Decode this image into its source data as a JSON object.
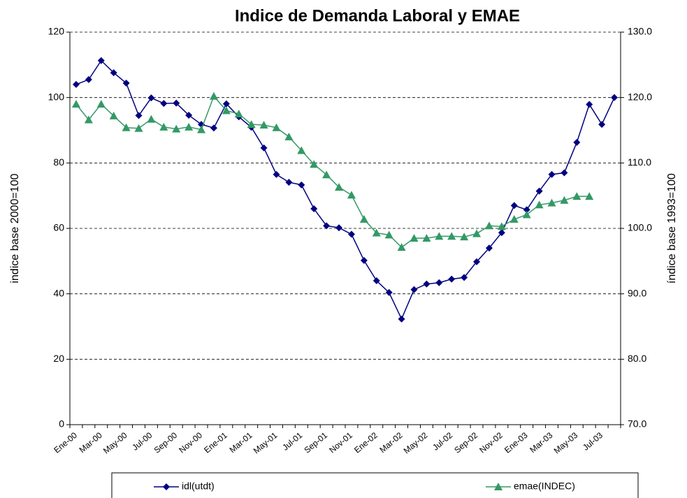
{
  "chart_data": {
    "type": "line",
    "title": "Indice de Demanda Laboral y EMAE",
    "ylabel": "indice base 2000=100",
    "y2label": "índice base 1993=100",
    "categories": [
      "Ene-00",
      null,
      "Mar-00",
      null,
      "May-00",
      null,
      "Jul-00",
      null,
      "Sep-00",
      null,
      "Nov-00",
      null,
      "Ene-01",
      null,
      "Mar-01",
      null,
      "May-01",
      null,
      "Jul-01",
      null,
      "Sep-01",
      null,
      "Nov-01",
      null,
      "Ene-02",
      null,
      "Mar-02",
      null,
      "May-02",
      null,
      "Jul-02",
      null,
      "Sep-02",
      null,
      "Nov-02",
      null,
      "Ene-03",
      null,
      "Mar-03",
      null,
      "May-03",
      null,
      "Jul-03",
      null
    ],
    "series": [
      {
        "name": "idl(utdt)",
        "color": "#000080",
        "marker": "diamond",
        "values": [
          104,
          105.5,
          111.3,
          107.6,
          104.4,
          94.5,
          99.9,
          98.2,
          98.3,
          94.6,
          91.8,
          90.7,
          98.1,
          94.1,
          90.9,
          84.6,
          76.5,
          74.1,
          73.3,
          66,
          60.8,
          60.2,
          58.2,
          50.2,
          44,
          40.4,
          32.3,
          41.3,
          43,
          43.4,
          44.5,
          45,
          49.8,
          54,
          58.7,
          67,
          65.7,
          71.4,
          76.5,
          77,
          86.3,
          97.9,
          91.8,
          100
        ]
      },
      {
        "name": "emae(INDEC)",
        "color": "#339966",
        "marker": "triangle",
        "axis": "y2",
        "values": [
          119.0,
          116.6,
          119.0,
          117.2,
          115.4,
          115.3,
          116.7,
          115.5,
          115.2,
          115.5,
          115.1,
          120.2,
          118.0,
          117.5,
          115.9,
          115.8,
          115.4,
          114.0,
          111.9,
          109.8,
          108.2,
          106.3,
          105.1,
          101.4,
          99.3,
          99.0,
          97.1,
          98.5,
          98.5,
          98.8,
          98.8,
          98.7,
          99.2,
          100.4,
          100.3,
          101.4,
          102.1,
          103.6,
          103.9,
          104.3,
          104.9,
          104.9,
          null,
          null
        ]
      }
    ],
    "ylim": [
      0,
      120
    ],
    "yticks": [
      0,
      20,
      40,
      60,
      80,
      100,
      120
    ],
    "y2lim": [
      70,
      130
    ],
    "y2ticks": [
      {
        "value": 70,
        "label": "70.0"
      },
      {
        "value": 80,
        "label": "80.0"
      },
      {
        "value": 90,
        "label": "90.0"
      },
      {
        "value": 100,
        "label": "100.0"
      },
      {
        "value": 110,
        "label": "110.0"
      },
      {
        "value": 120,
        "label": "120.0"
      },
      {
        "value": 130,
        "label": "130.0"
      }
    ],
    "grid": true,
    "legend": "bottom"
  }
}
